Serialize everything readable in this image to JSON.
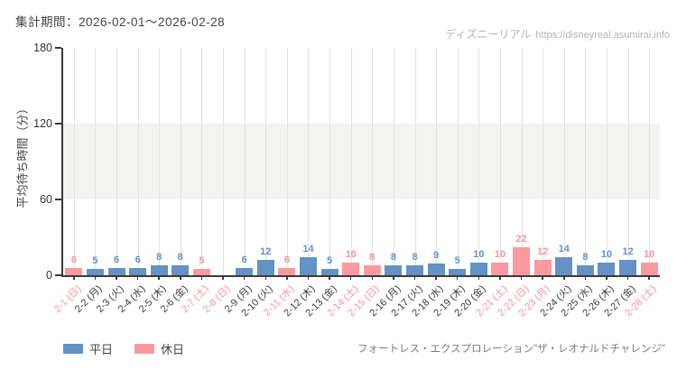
{
  "header": {
    "period_label": "集計期間：2026-02-01～2026-02-28"
  },
  "watermark": {
    "site_name": "ディズニーリアル",
    "site_url": "https://disneyreal.asumirai.info"
  },
  "legend": {
    "weekday_label": "平日",
    "holiday_label": "休日"
  },
  "footer": {
    "attraction_name": "フォートレス・エクスプロレーション\"ザ・レオナルドチャレンジ\""
  },
  "chart_data": {
    "type": "bar",
    "title": "",
    "xlabel": "",
    "ylabel": "平均待ち時間（分）",
    "ylim": [
      0,
      180
    ],
    "yticks": [
      0,
      60,
      120,
      180
    ],
    "shaded_band": {
      "from": 60,
      "to": 120
    },
    "grid": "vertical",
    "legend_position": "bottom-left",
    "categories": [
      "2-1 (日)",
      "2-2 (月)",
      "2-3 (火)",
      "2-4 (水)",
      "2-5 (木)",
      "2-6 (金)",
      "2-7 (土)",
      "2-8 (日)",
      "2-9 (月)",
      "2-10 (火)",
      "2-11 (水)",
      "2-12 (木)",
      "2-13 (金)",
      "2-14 (土)",
      "2-15 (日)",
      "2-16 (月)",
      "2-17 (火)",
      "2-18 (水)",
      "2-19 (木)",
      "2-20 (金)",
      "2-21 (土)",
      "2-22 (日)",
      "2-23 (月)",
      "2-24 (火)",
      "2-25 (水)",
      "2-26 (木)",
      "2-27 (金)",
      "2-28 (土)"
    ],
    "values": [
      6,
      5,
      6,
      6,
      8,
      8,
      5,
      null,
      6,
      12,
      6,
      14,
      5,
      10,
      8,
      8,
      8,
      9,
      5,
      10,
      10,
      22,
      12,
      14,
      8,
      10,
      12,
      10
    ],
    "day_types": [
      "holiday",
      "weekday",
      "weekday",
      "weekday",
      "weekday",
      "weekday",
      "holiday",
      "holiday",
      "weekday",
      "weekday",
      "holiday",
      "weekday",
      "weekday",
      "holiday",
      "holiday",
      "weekday",
      "weekday",
      "weekday",
      "weekday",
      "weekday",
      "holiday",
      "holiday",
      "holiday",
      "weekday",
      "weekday",
      "weekday",
      "weekday",
      "holiday"
    ],
    "colors": {
      "weekday_bar": "#6392c6",
      "holiday_bar": "#fa9aa0",
      "weekday_label": "#3b3b3b",
      "holiday_label": "#f9959c",
      "axis": "#3a3a3a",
      "grid": "#e2e2e2",
      "band": "#f3f3f1"
    }
  }
}
